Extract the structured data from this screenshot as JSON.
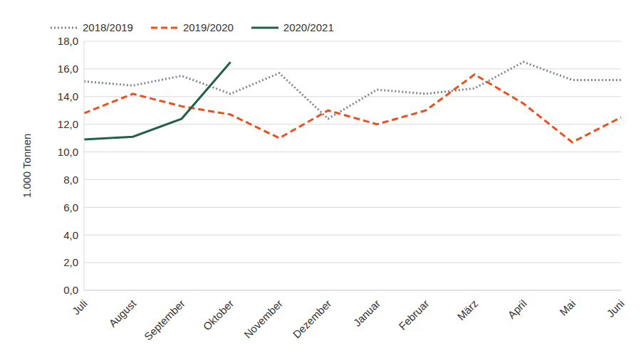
{
  "chart_data": {
    "type": "line",
    "y_label": "1.000 Tonnen",
    "categories": [
      "Juli",
      "August",
      "September",
      "Oktober",
      "November",
      "Dezember",
      "Januar",
      "Februar",
      "März",
      "April",
      "Mai",
      "Juni"
    ],
    "series": [
      {
        "name": "2018/2019",
        "color": "#7f8690",
        "line_style": "dotted",
        "values": [
          15.1,
          14.8,
          15.5,
          14.2,
          15.7,
          12.4,
          14.5,
          14.2,
          14.6,
          16.5,
          15.2,
          15.2
        ]
      },
      {
        "name": "2019/2020",
        "color": "#e8501e",
        "line_style": "dashed",
        "values": [
          12.8,
          14.2,
          13.3,
          12.7,
          11.0,
          13.0,
          12.0,
          13.0,
          15.6,
          13.5,
          10.7,
          12.5
        ]
      },
      {
        "name": "2020/2021",
        "color": "#22604a",
        "line_style": "solid",
        "values": [
          10.9,
          11.1,
          12.4,
          16.5,
          null,
          null,
          null,
          null,
          null,
          null,
          null,
          null
        ]
      }
    ],
    "ylim": [
      0,
      18
    ],
    "yticks": [
      {
        "value": 0,
        "label": "0,0"
      },
      {
        "value": 2,
        "label": "2,0"
      },
      {
        "value": 4,
        "label": "4,0"
      },
      {
        "value": 6,
        "label": "6,0"
      },
      {
        "value": 8,
        "label": "8,0"
      },
      {
        "value": 10,
        "label": "10,0"
      },
      {
        "value": 12,
        "label": "12,0"
      },
      {
        "value": 14,
        "label": "14,0"
      },
      {
        "value": 16,
        "label": "16,0"
      },
      {
        "value": 18,
        "label": "18,0"
      }
    ],
    "grid": true,
    "legend": "top-left"
  }
}
